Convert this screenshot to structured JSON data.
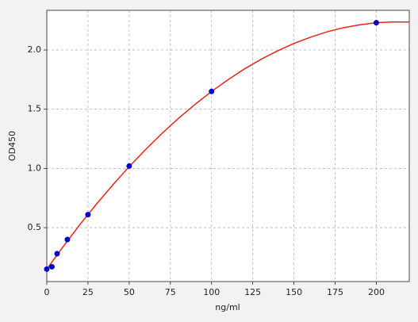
{
  "chart_data": {
    "type": "scatter",
    "x": [
      0,
      3.125,
      6.25,
      12.5,
      25,
      50,
      100,
      200
    ],
    "y": [
      0.15,
      0.17,
      0.28,
      0.4,
      0.61,
      1.02,
      1.65,
      2.23
    ],
    "color": "#0000cc",
    "fit_x": [
      0,
      10,
      20,
      30,
      40,
      50,
      60,
      70,
      80,
      90,
      100,
      110,
      120,
      130,
      140,
      150,
      160,
      170,
      180,
      190,
      200,
      210,
      220
    ],
    "fit_y": [
      0.15,
      0.341,
      0.524,
      0.697,
      0.86,
      1.015,
      1.16,
      1.297,
      1.424,
      1.541,
      1.65,
      1.749,
      1.84,
      1.921,
      1.992,
      2.055,
      2.108,
      2.153,
      2.188,
      2.213,
      2.23,
      2.237,
      2.236
    ],
    "fit_color": "#e8231b",
    "xlabel": "ng/ml",
    "ylabel": "OD450",
    "xlim": [
      0,
      220
    ],
    "ylim": [
      0.045,
      2.335
    ],
    "xticks": [
      0,
      25,
      50,
      75,
      100,
      125,
      150,
      175,
      200
    ],
    "yticks": [
      0.5,
      {
        "value": 1,
        "label": "1.0"
      },
      1.5,
      {
        "value": 2,
        "label": "2.0"
      }
    ],
    "grid": true
  }
}
